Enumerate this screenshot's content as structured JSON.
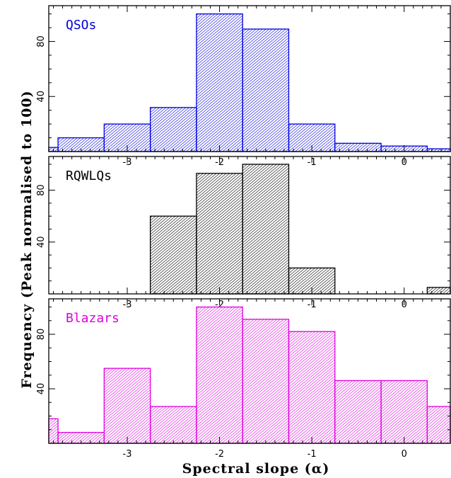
{
  "chart_data": [
    {
      "type": "histogram",
      "label": "QSOs",
      "color": "#0000dd",
      "x": {
        "ticks": [
          -3,
          -2,
          -1,
          0
        ],
        "lim": [
          -3.85,
          0.5
        ]
      },
      "y": {
        "ticks": [
          40,
          80
        ],
        "lim": [
          0,
          106
        ]
      },
      "bin_edges": [
        -3.85,
        -3.75,
        -3.25,
        -2.75,
        -2.25,
        -1.75,
        -1.25,
        -0.75,
        -0.25,
        0.25,
        0.5
      ],
      "values": [
        3,
        10,
        20,
        32,
        100,
        89,
        20,
        6,
        4,
        2
      ]
    },
    {
      "type": "histogram",
      "label": "RQWLQs",
      "color": "#000000",
      "x": {
        "ticks": [
          -3,
          -2,
          -1,
          0
        ],
        "lim": [
          -3.85,
          0.5
        ]
      },
      "y": {
        "ticks": [
          40,
          80
        ],
        "lim": [
          0,
          106
        ]
      },
      "bin_edges": [
        -2.75,
        -2.25,
        -1.75,
        -1.25,
        -0.75,
        -0.25,
        0.25,
        0.5
      ],
      "values": [
        60,
        93,
        100,
        20,
        0,
        0,
        5
      ]
    },
    {
      "type": "histogram",
      "label": "Blazars",
      "color": "#dd00dd",
      "x": {
        "ticks": [
          -3,
          -2,
          -1,
          0
        ],
        "lim": [
          -3.85,
          0.5
        ]
      },
      "y": {
        "ticks": [
          40,
          80
        ],
        "lim": [
          0,
          106
        ]
      },
      "bin_edges": [
        -3.85,
        -3.75,
        -3.25,
        -2.75,
        -2.25,
        -1.75,
        -1.25,
        -0.75,
        -0.25,
        0.25,
        0.5
      ],
      "values": [
        18,
        8,
        55,
        27,
        100,
        91,
        82,
        46,
        46,
        27
      ]
    }
  ],
  "xlabel": "Spectral slope (α)",
  "ylabel": "Frequency (Peak normalised to 100)"
}
